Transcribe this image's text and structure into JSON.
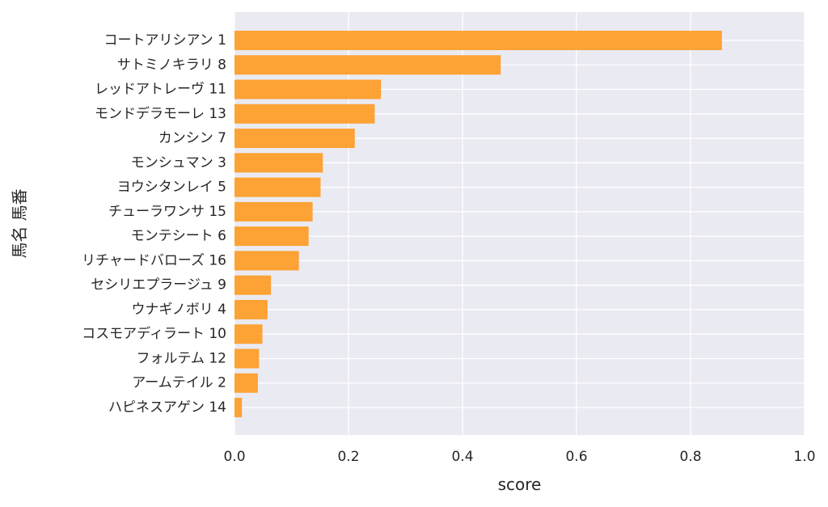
{
  "chart_data": {
    "type": "bar",
    "orientation": "horizontal",
    "xlabel": "score",
    "ylabel": "馬名 馬番",
    "xlim": [
      0.0,
      1.0
    ],
    "xticks": [
      "0.0",
      "0.2",
      "0.4",
      "0.6",
      "0.8",
      "1.0"
    ],
    "grid": true,
    "bar_color": "#ff9a1f",
    "background_color": "#eaeaf2",
    "grid_color": "#ffffff",
    "categories": [
      "コートアリシアン 1",
      "サトミノキラリ 8",
      "レッドアトレーヴ 11",
      "モンドデラモーレ 13",
      "カンシン 7",
      "モンシュマン 3",
      "ヨウシタンレイ 5",
      "チューラワンサ 15",
      "モンテシート 6",
      "リチャードバローズ 16",
      "セシリエプラージュ 9",
      "ウナギノボリ 4",
      "コスモアディラート 10",
      "フォルテム 12",
      "アームテイル 2",
      "ハピネスアゲン 14"
    ],
    "values": [
      0.855,
      0.467,
      0.257,
      0.246,
      0.211,
      0.155,
      0.151,
      0.137,
      0.13,
      0.113,
      0.064,
      0.058,
      0.049,
      0.043,
      0.041,
      0.013
    ]
  }
}
